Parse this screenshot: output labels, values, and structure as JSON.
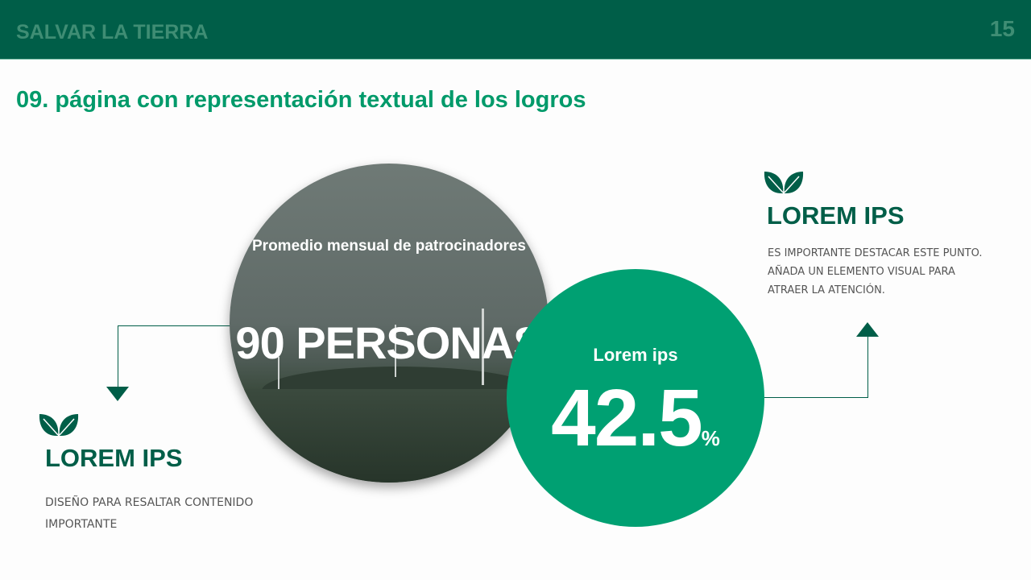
{
  "header": {
    "brand": "SALVAR LA TIERRA",
    "page_number": "15"
  },
  "title": "09. página con representación textual de los logros",
  "photo_circle": {
    "label": "Promedio mensual de patrocinadores",
    "value": "90 PERSONAS"
  },
  "green_circle": {
    "label": "Lorem ips",
    "value": "42.5",
    "unit": "%"
  },
  "right_block": {
    "icon": "leaf-icon",
    "heading": "LOREM IPS",
    "lines": [
      "ES IMPORTANTE DESTACAR ESTE PUNTO.",
      "AÑADA UN ELEMENTO VISUAL PARA",
      "ATRAER LA ATENCIÓN."
    ]
  },
  "left_block": {
    "icon": "leaf-icon",
    "heading": "LOREM IPS",
    "lines": [
      "DISEÑO PARA RESALTAR CONTENIDO",
      "IMPORTANTE"
    ]
  },
  "colors": {
    "header": "#005e48",
    "accent": "#00a072",
    "title": "#009a6a"
  }
}
